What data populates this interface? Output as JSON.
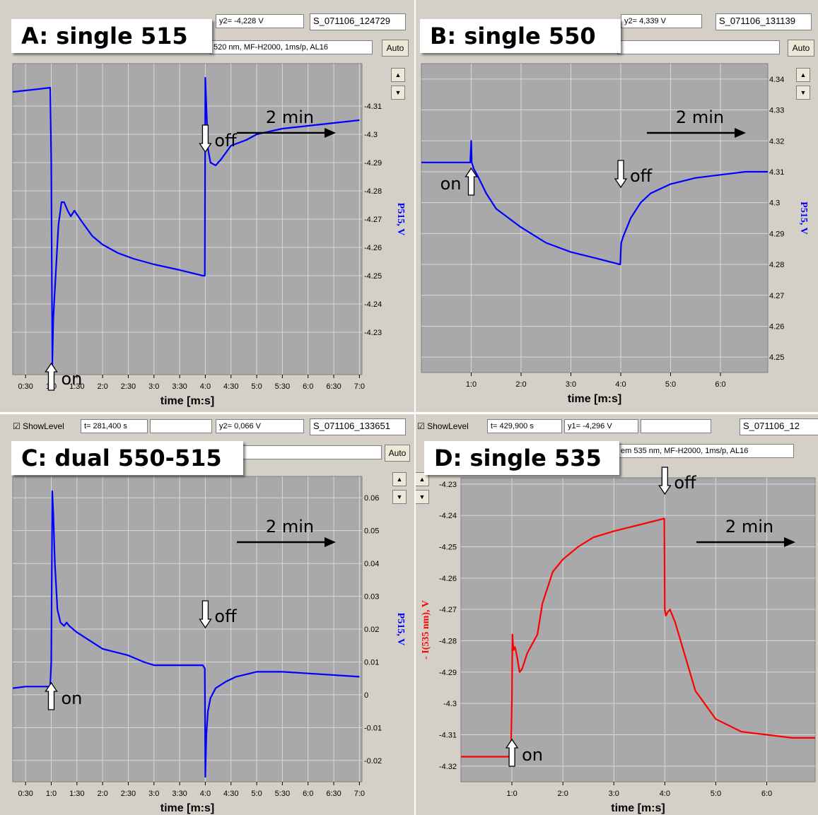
{
  "panels": {
    "A": {
      "title": "A: single 515",
      "y2_readout": "y2= -4,228 V",
      "file_id": "S_071106_124729",
      "info": "520 nm, MF-H2000, 1ms/p, AL16",
      "auto_label": "Auto",
      "scale_arrow": "2 min",
      "on_label": "on",
      "off_label": "off",
      "trace_color": "#0000ff",
      "xlabel": "time [m:s]",
      "ylabel": "P515, V"
    },
    "B": {
      "title": "B: single 550",
      "y2_readout": "y2= 4,339 V",
      "file_id": "S_071106_131139",
      "auto_label": "Auto",
      "scale_arrow": "2 min",
      "on_label": "on",
      "off_label": "off",
      "trace_color": "#0000ff",
      "xlabel": "time [m:s]",
      "ylabel": "P515, V"
    },
    "C": {
      "title": "C: dual 550-515",
      "showlevel": "ShowLevel",
      "t_readout": "t= 281,400 s",
      "y2_readout": "y2= 0,066 V",
      "file_id": "S_071106_133651",
      "auto_label": "Auto",
      "scale_arrow": "2 min",
      "on_label": "on",
      "off_label": "off",
      "trace_color": "#0000ff",
      "xlabel": "time [m:s]",
      "ylabel": "P515, V"
    },
    "D": {
      "title": "D: single 535",
      "showlevel": "ShowLevel",
      "t_readout": "t= 429,900 s",
      "y1_readout": "y1= -4,296 V",
      "file_id": "S_071106_12",
      "info": "em 535 nm, MF-H2000, 1ms/p, AL16",
      "scale_arrow": "2 min",
      "on_label": "on",
      "off_label": "off",
      "trace_color": "#ff0000",
      "xlabel": "time [m:s]",
      "ylabel": "- I(535 nm), V"
    }
  },
  "chart_data": [
    {
      "panel": "A",
      "type": "line",
      "title": "A: single 515",
      "xlabel": "time [m:s]",
      "ylabel": "P515, V",
      "xlim": [
        0.25,
        7.05
      ],
      "ylim": [
        -4.325,
        -4.215
      ],
      "y_reversed": true,
      "x_ticks": [
        0.5,
        1,
        1.5,
        2,
        2.5,
        3,
        3.5,
        4,
        4.5,
        5,
        5.5,
        6,
        6.5,
        7
      ],
      "x_tick_labels": [
        "0:30",
        "1:0",
        "1:30",
        "2:0",
        "2:30",
        "3:0",
        "3:30",
        "4:0",
        "4:30",
        "5:0",
        "5:30",
        "6:0",
        "6:30",
        "7:0"
      ],
      "y_ticks": [
        -4.23,
        -4.24,
        -4.25,
        -4.26,
        -4.27,
        -4.28,
        -4.29,
        -4.3,
        -4.31
      ],
      "y_tick_labels": [
        "-4.23",
        "-4.24",
        "-4.25",
        "-4.26",
        "-4.27",
        "-4.28",
        "-4.29",
        "-4.3",
        "-4.31"
      ],
      "grid": true,
      "on_time": 1.0,
      "off_time": 4.0,
      "series": [
        {
          "x": [
            0.25,
            0.5,
            0.75,
            0.98,
            1.0,
            1.02,
            1.04,
            1.07,
            1.1,
            1.14,
            1.2,
            1.25,
            1.32,
            1.38,
            1.45,
            1.6,
            1.8,
            2.0,
            2.3,
            2.6,
            3.0,
            3.5,
            3.95,
            3.99,
            4.0,
            4.02,
            4.05,
            4.1,
            4.2,
            4.3,
            4.5,
            4.8,
            5.0,
            5.5,
            6.0,
            6.5,
            7.0
          ],
          "y": [
            -4.315,
            -4.3155,
            -4.316,
            -4.3165,
            -4.29,
            -4.218,
            -4.235,
            -4.245,
            -4.255,
            -4.268,
            -4.276,
            -4.276,
            -4.273,
            -4.271,
            -4.273,
            -4.269,
            -4.264,
            -4.261,
            -4.258,
            -4.256,
            -4.254,
            -4.252,
            -4.25,
            -4.25,
            -4.32,
            -4.31,
            -4.295,
            -4.29,
            -4.289,
            -4.291,
            -4.296,
            -4.298,
            -4.3,
            -4.302,
            -4.303,
            -4.304,
            -4.305
          ]
        }
      ]
    },
    {
      "panel": "B",
      "type": "line",
      "title": "B: single 550",
      "xlabel": "time [m:s]",
      "ylabel": "P515, V",
      "xlim": [
        0.0,
        6.95
      ],
      "ylim": [
        4.245,
        4.345
      ],
      "x_ticks": [
        1,
        2,
        3,
        4,
        5,
        6
      ],
      "x_tick_labels": [
        "1:0",
        "2:0",
        "3:0",
        "4:0",
        "5:0",
        "6:0"
      ],
      "y_ticks": [
        4.34,
        4.33,
        4.32,
        4.31,
        4.3,
        4.29,
        4.28,
        4.27,
        4.26,
        4.25
      ],
      "y_tick_labels": [
        "4.34",
        "4.33",
        "4.32",
        "4.31",
        "4.3",
        "4.29",
        "4.28",
        "4.27",
        "4.26",
        "4.25"
      ],
      "grid": true,
      "on_time": 1.0,
      "off_time": 4.0,
      "series": [
        {
          "x": [
            0.0,
            0.5,
            0.98,
            1.0,
            1.01,
            1.05,
            1.15,
            1.3,
            1.5,
            2.0,
            2.5,
            3.0,
            3.5,
            3.98,
            3.99,
            4.0,
            4.01,
            4.05,
            4.2,
            4.4,
            4.6,
            5.0,
            5.5,
            6.0,
            6.5,
            6.95
          ],
          "y": [
            4.313,
            4.313,
            4.313,
            4.32,
            4.313,
            4.311,
            4.308,
            4.303,
            4.298,
            4.292,
            4.287,
            4.284,
            4.282,
            4.28,
            4.28,
            4.284,
            4.287,
            4.289,
            4.295,
            4.3,
            4.303,
            4.306,
            4.308,
            4.309,
            4.31,
            4.31
          ]
        }
      ]
    },
    {
      "panel": "C",
      "type": "line",
      "title": "C: dual 550-515",
      "xlabel": "time [m:s]",
      "ylabel": "P515, V",
      "xlim": [
        0.25,
        7.05
      ],
      "ylim": [
        -0.0265,
        0.0665
      ],
      "x_ticks": [
        0.5,
        1,
        1.5,
        2,
        2.5,
        3,
        3.5,
        4,
        4.5,
        5,
        5.5,
        6,
        6.5,
        7
      ],
      "x_tick_labels": [
        "0:30",
        "1:0",
        "1:30",
        "2:0",
        "2:30",
        "3:0",
        "3:30",
        "4:0",
        "4:30",
        "5:0",
        "5:30",
        "6:0",
        "6:30",
        "7:0"
      ],
      "y_ticks": [
        0.06,
        0.05,
        0.04,
        0.03,
        0.02,
        0.01,
        0,
        -0.01,
        -0.02
      ],
      "y_tick_labels": [
        "0.06",
        "0.05",
        "0.04",
        "0.03",
        "0.02",
        "0.01",
        "0",
        "-0.01",
        "-0.02"
      ],
      "grid": true,
      "on_time": 1.0,
      "off_time": 4.0,
      "series": [
        {
          "x": [
            0.25,
            0.5,
            0.75,
            0.98,
            1.0,
            1.02,
            1.04,
            1.07,
            1.12,
            1.18,
            1.25,
            1.3,
            1.35,
            1.5,
            1.8,
            2.0,
            2.5,
            2.8,
            3.0,
            3.5,
            3.95,
            3.99,
            4.0,
            4.02,
            4.05,
            4.1,
            4.2,
            4.4,
            4.6,
            5.0,
            5.5,
            6.0,
            6.5,
            7.0
          ],
          "y": [
            0.002,
            0.0025,
            0.0025,
            0.0025,
            0.01,
            0.062,
            0.055,
            0.04,
            0.026,
            0.022,
            0.021,
            0.022,
            0.021,
            0.019,
            0.016,
            0.014,
            0.012,
            0.01,
            0.009,
            0.009,
            0.009,
            0.008,
            -0.025,
            -0.012,
            -0.005,
            -0.001,
            0.002,
            0.004,
            0.0055,
            0.007,
            0.007,
            0.0065,
            0.006,
            0.0055
          ]
        }
      ]
    },
    {
      "panel": "D",
      "type": "line",
      "title": "D: single 535",
      "xlabel": "time [m:s]",
      "ylabel": "- I(535 nm), V",
      "xlim": [
        0.0,
        6.95
      ],
      "ylim": [
        -4.325,
        -4.228
      ],
      "x_ticks": [
        1,
        2,
        3,
        4,
        5,
        6
      ],
      "x_tick_labels": [
        "1:0",
        "2:0",
        "3:0",
        "4:0",
        "5:0",
        "6:0"
      ],
      "y_ticks": [
        -4.23,
        -4.24,
        -4.25,
        -4.26,
        -4.27,
        -4.28,
        -4.29,
        -4.3,
        -4.31,
        -4.32
      ],
      "y_tick_labels": [
        "-4.23",
        "-4.24",
        "-4.25",
        "-4.26",
        "-4.27",
        "-4.28",
        "-4.29",
        "-4.3",
        "-4.31",
        "-4.32"
      ],
      "grid": true,
      "on_time": 1.0,
      "off_time": 4.0,
      "series": [
        {
          "x": [
            0.0,
            0.5,
            0.98,
            1.0,
            1.01,
            1.03,
            1.06,
            1.1,
            1.15,
            1.2,
            1.3,
            1.4,
            1.5,
            1.6,
            1.8,
            2.0,
            2.3,
            2.6,
            3.0,
            3.5,
            3.99,
            4.0,
            4.02,
            4.05,
            4.1,
            4.2,
            4.4,
            4.6,
            5.0,
            5.5,
            6.0,
            6.5,
            6.95
          ],
          "y": [
            -4.317,
            -4.317,
            -4.317,
            -4.298,
            -4.278,
            -4.283,
            -4.282,
            -4.285,
            -4.29,
            -4.289,
            -4.284,
            -4.281,
            -4.278,
            -4.268,
            -4.258,
            -4.254,
            -4.25,
            -4.247,
            -4.245,
            -4.243,
            -4.241,
            -4.27,
            -4.272,
            -4.271,
            -4.27,
            -4.274,
            -4.285,
            -4.296,
            -4.305,
            -4.309,
            -4.31,
            -4.311,
            -4.311
          ]
        }
      ]
    }
  ]
}
